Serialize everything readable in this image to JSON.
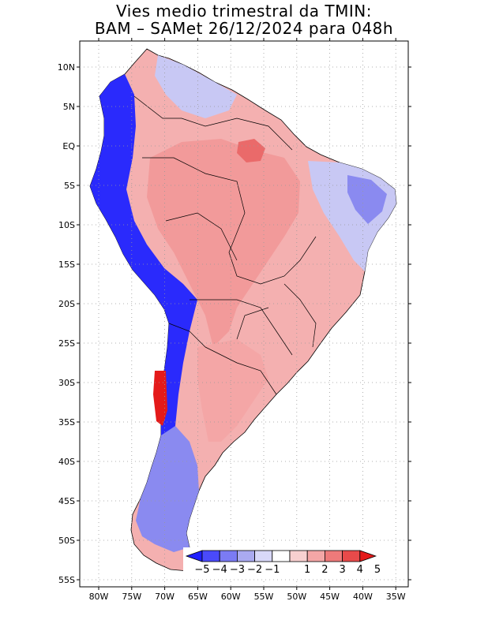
{
  "title_line1": "Vies medio trimestral da TMIN:",
  "title_line2": "BAM – SAMet 26/12/2024  para 048h",
  "lat_ticks": [
    "10N",
    "5N",
    "EQ",
    "5S",
    "10S",
    "15S",
    "20S",
    "25S",
    "30S",
    "35S",
    "40S",
    "45S",
    "50S",
    "55S"
  ],
  "lon_ticks": [
    "80W",
    "75W",
    "70W",
    "65W",
    "60W",
    "55W",
    "50W",
    "45W",
    "40W",
    "35W"
  ],
  "colorbar": {
    "labels": [
      "−5",
      "−4",
      "−3",
      "−2",
      "−1",
      "1",
      "2",
      "3",
      "4",
      "5"
    ],
    "colors": [
      "#1f1fff",
      "#4a4afa",
      "#7b7bf4",
      "#aaaaf0",
      "#d8d8f8",
      "#ffffff",
      "#f8d0d0",
      "#f4a6a6",
      "#ee7a7a",
      "#e84a4a",
      "#e41a1a"
    ]
  },
  "colors": {
    "positive_bias": "#f4a6a6",
    "strong_positive": "#e84a4a",
    "negative_bias": "#aaaaf0",
    "strong_negative": "#1f1fff"
  }
}
